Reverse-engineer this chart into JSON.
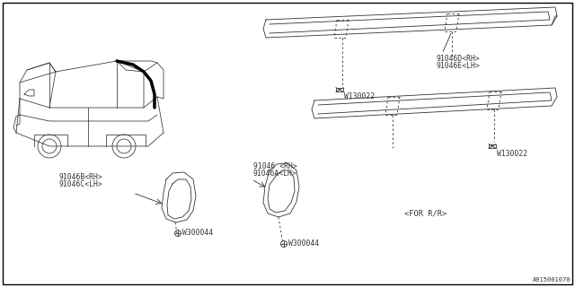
{
  "bg_color": "#ffffff",
  "border_color": "#000000",
  "line_color": "#333333",
  "fig_width": 6.4,
  "fig_height": 3.2,
  "dpi": 100,
  "labels": {
    "top_molding_0": "91046D<RH>",
    "top_molding_1": "91046E<LH>",
    "bot_molding_0": "91046 <RH>",
    "bot_molding_1": "91046A<LH>",
    "left_molding_0": "91046B<RH>",
    "left_molding_1": "91046C<LH>",
    "clip_upper": "W130022",
    "clip_lower": "W130022",
    "bolt_left": "W300044",
    "bolt_center": "W300044",
    "for_rr": "<FOR R/R>",
    "diagram_num": "A915001070"
  }
}
